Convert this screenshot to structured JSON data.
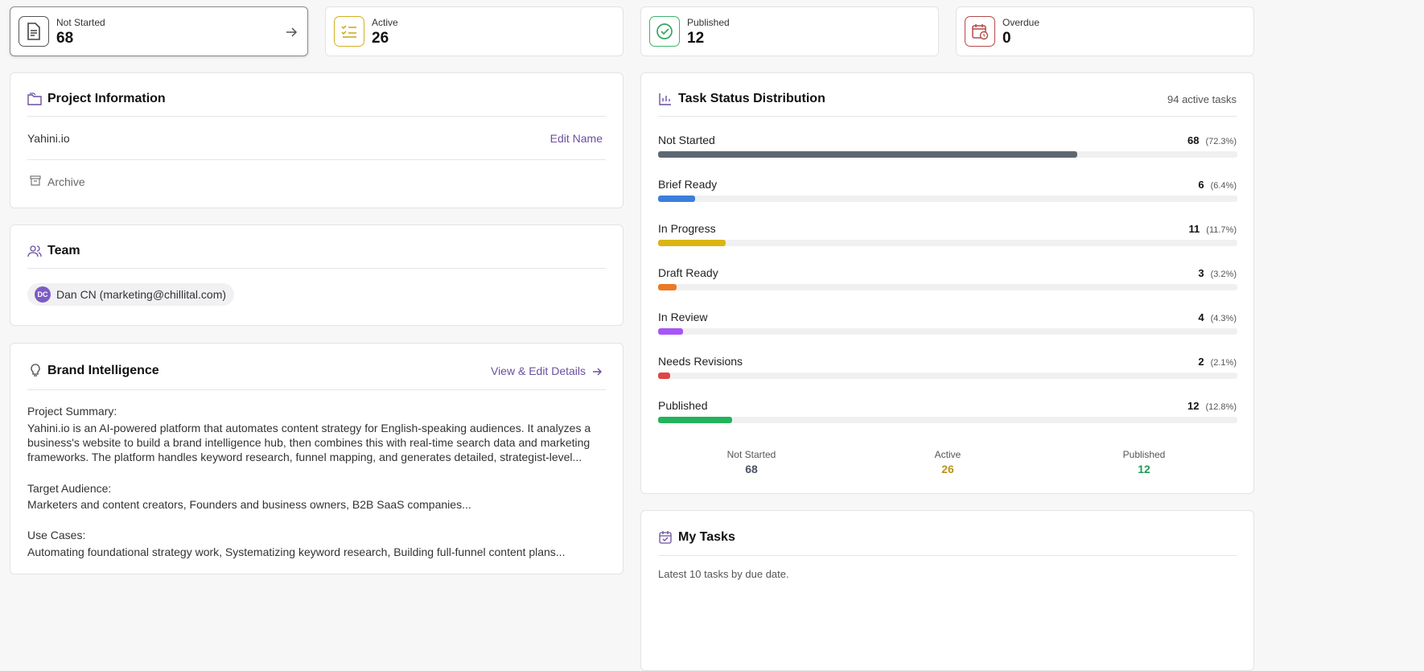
{
  "stats": [
    {
      "label": "Not Started",
      "value": 68
    },
    {
      "label": "Active",
      "value": 26
    },
    {
      "label": "Published",
      "value": 12
    },
    {
      "label": "Overdue",
      "value": 0
    }
  ],
  "project_information": {
    "title": "Project Information",
    "name": "Yahini.io",
    "edit": "Edit Name",
    "archive": "Archive"
  },
  "team": {
    "title": "Team",
    "members": [
      {
        "initials": "DC",
        "label": "Dan CN (marketing@chillital.com)"
      }
    ]
  },
  "brand_intelligence": {
    "title": "Brand Intelligence",
    "link": "View & Edit Details",
    "sections": [
      {
        "heading": "Project Summary:",
        "text": "Yahini.io is an AI-powered platform that automates content strategy for English-speaking audiences. It analyzes a business's website to build a brand intelligence hub, then combines this with real-time search data and marketing frameworks. The platform handles keyword research, funnel mapping, and generates detailed, strategist-level..."
      },
      {
        "heading": "Target Audience:",
        "text": "Marketers and content creators, Founders and business owners, B2B SaaS companies..."
      },
      {
        "heading": "Use Cases:",
        "text": "Automating foundational strategy work, Systematizing keyword research, Building full-funnel content plans..."
      }
    ]
  },
  "task_status": {
    "title": "Task Status Distribution",
    "subtitle": "94 active tasks",
    "items": [
      {
        "name": "Not Started",
        "count": 68,
        "percent": 72.3,
        "percent_label": "(72.3%)",
        "color": "#5f6673"
      },
      {
        "name": "Brief Ready",
        "count": 6,
        "percent": 6.4,
        "percent_label": "(6.4%)",
        "color": "#3b7fdc"
      },
      {
        "name": "In Progress",
        "count": 11,
        "percent": 11.7,
        "percent_label": "(11.7%)",
        "color": "#d9b514"
      },
      {
        "name": "Draft Ready",
        "count": 3,
        "percent": 3.2,
        "percent_label": "(3.2%)",
        "color": "#ea7a26"
      },
      {
        "name": "In Review",
        "count": 4,
        "percent": 4.3,
        "percent_label": "(4.3%)",
        "color": "#a855f7"
      },
      {
        "name": "Needs Revisions",
        "count": 2,
        "percent": 2.1,
        "percent_label": "(2.1%)",
        "color": "#e04646"
      },
      {
        "name": "Published",
        "count": 12,
        "percent": 12.8,
        "percent_label": "(12.8%)",
        "color": "#22b35b"
      }
    ],
    "summary": [
      {
        "label": "Not Started",
        "value": 68,
        "color": "#4b5563"
      },
      {
        "label": "Active",
        "value": 26,
        "color": "#b8941f"
      },
      {
        "label": "Published",
        "value": 12,
        "color": "#1f9d55"
      }
    ]
  },
  "my_tasks": {
    "title": "My Tasks",
    "subtitle": "Latest 10 tasks by due date."
  }
}
